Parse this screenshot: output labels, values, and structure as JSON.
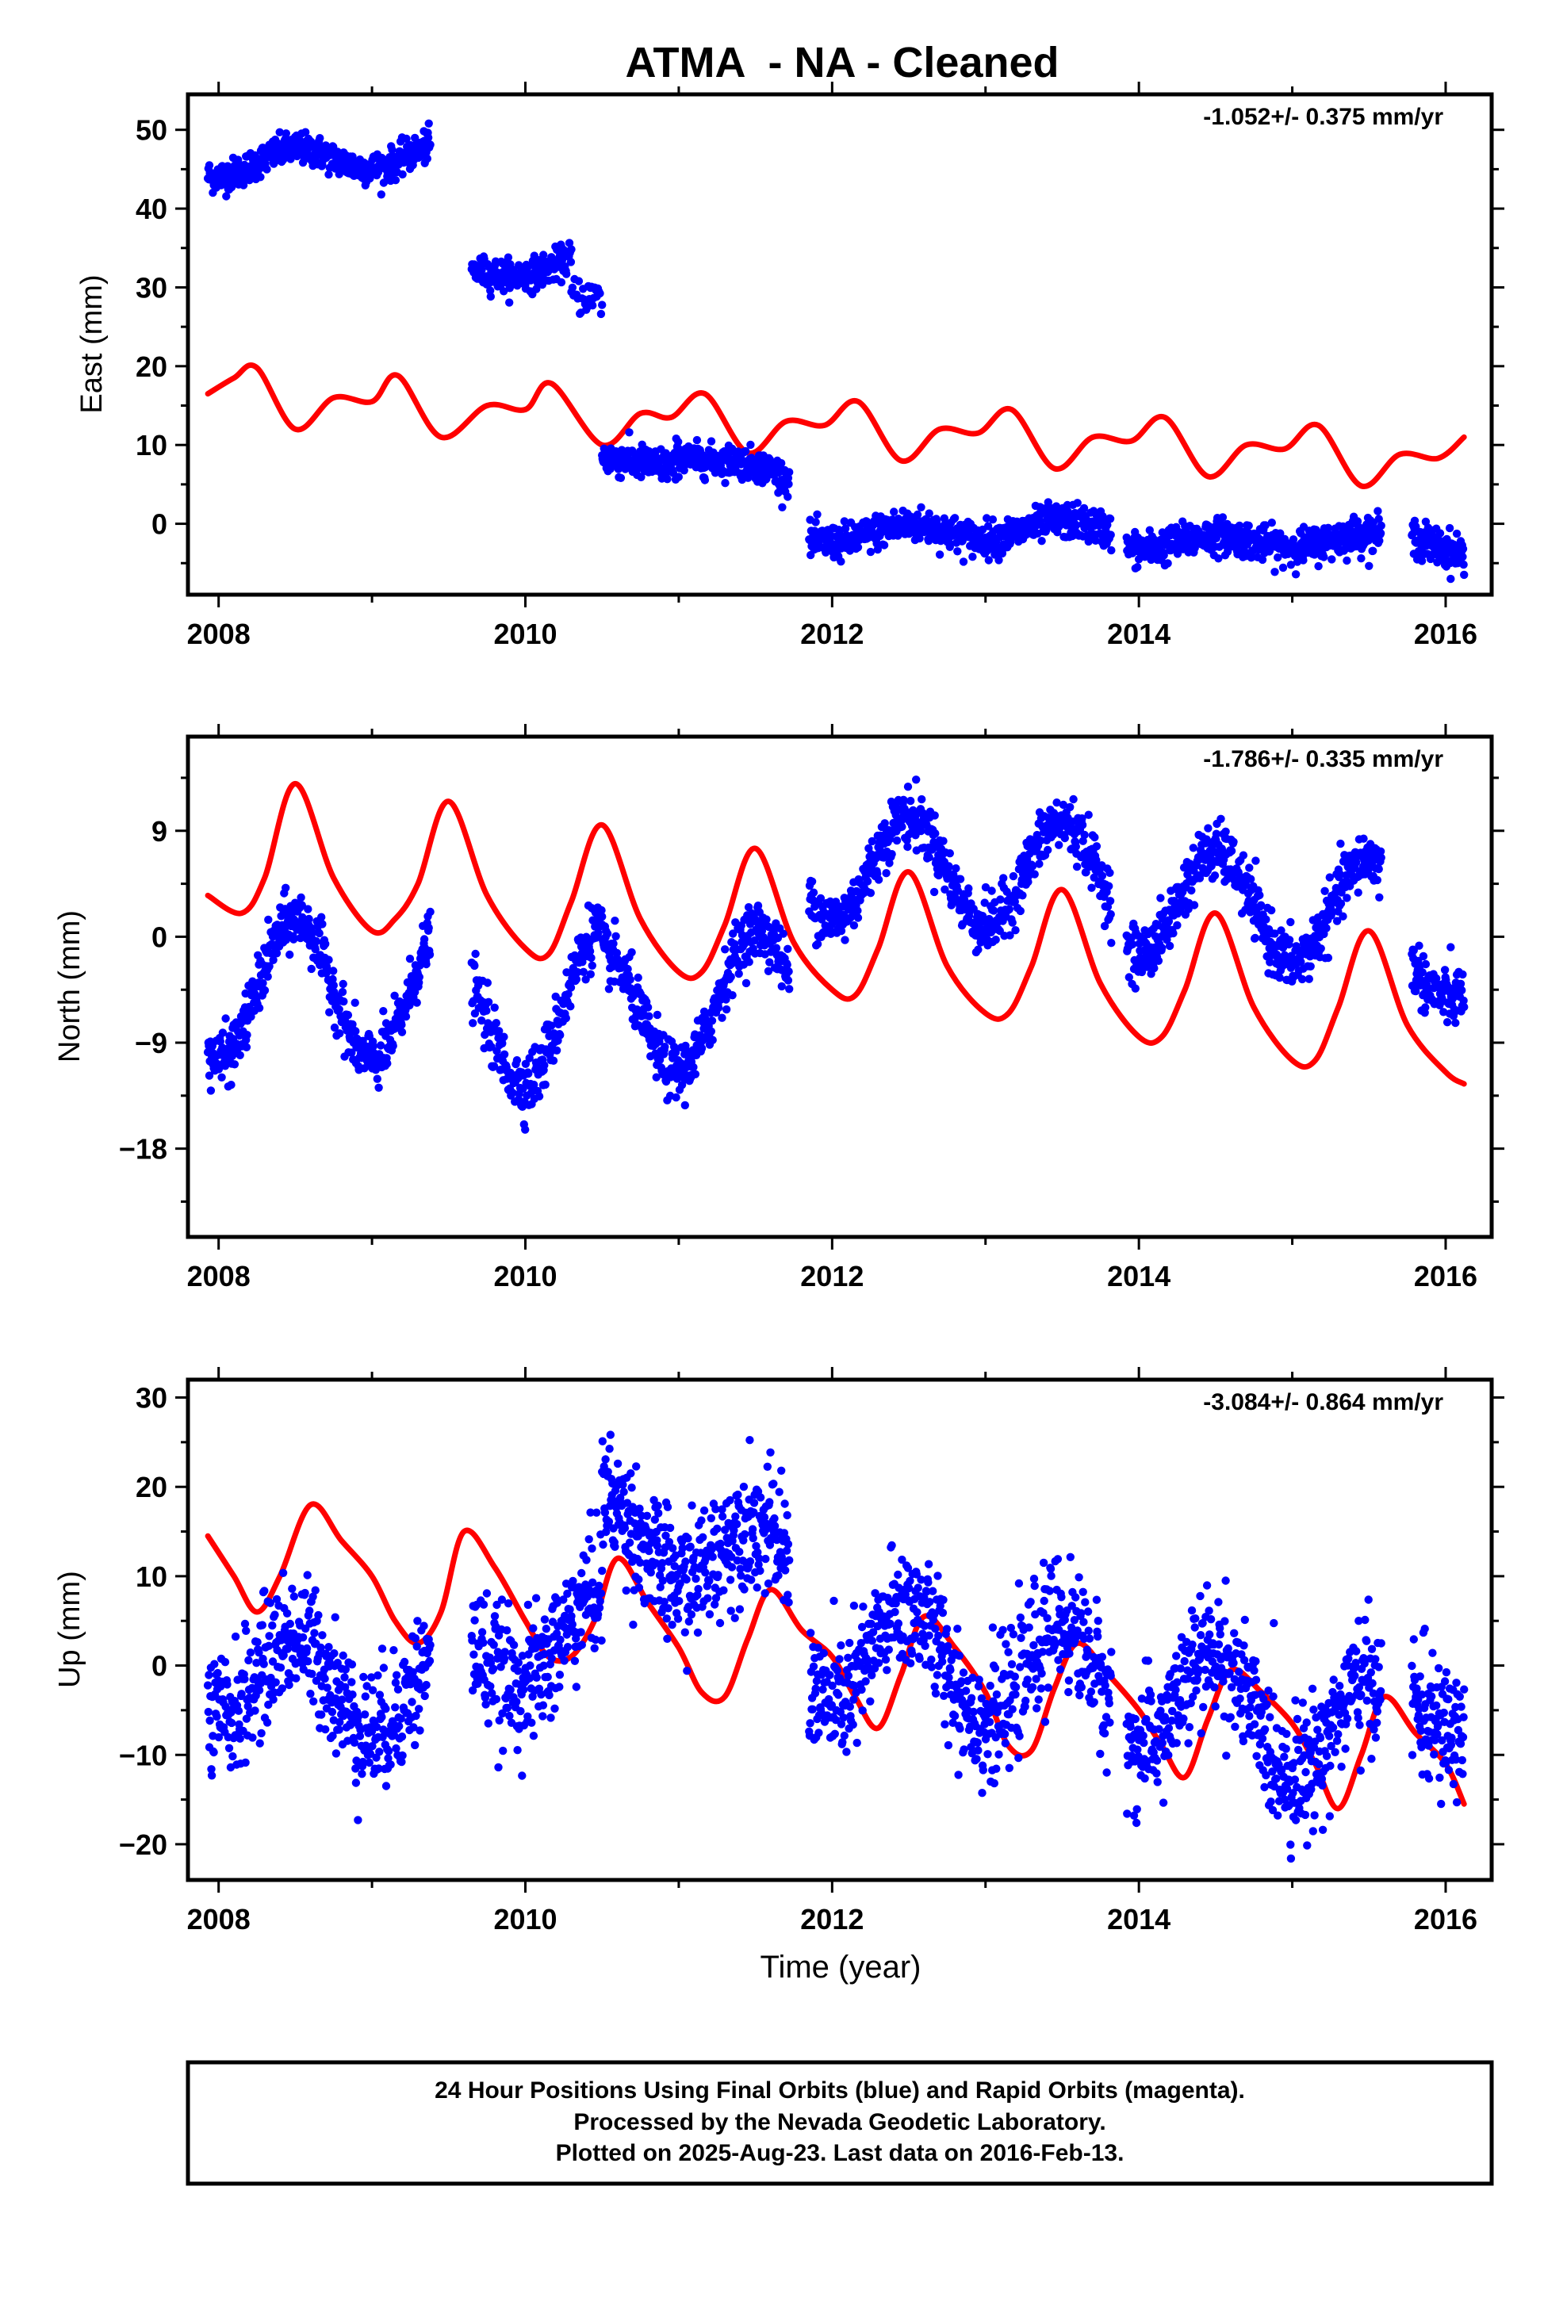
{
  "title": "ATMA  - NA - Cleaned",
  "footer": {
    "line1": "24 Hour Positions Using Final Orbits (blue) and Rapid Orbits (magenta).",
    "line2": "Processed by the Nevada Geodetic Laboratory.",
    "line3": "Plotted on 2025-Aug-23. Last data on 2016-Feb-13."
  },
  "colors": {
    "observed": "#0000ff",
    "model": "#ff0000"
  },
  "chart_data": [
    {
      "type": "scatter",
      "ylabel": "East (mm)",
      "xlabel": "",
      "xlim": [
        2007.8,
        2016.3
      ],
      "ylim": [
        -9,
        54.5
      ],
      "xticks": [
        2008,
        2010,
        2012,
        2014,
        2016
      ],
      "yticks": [
        0,
        10,
        20,
        30,
        40,
        50
      ],
      "rate": "-1.052+/- 0.375 mm/yr",
      "series": [
        {
          "kind": "observed",
          "style": "points",
          "segments": [
            {
              "x0": 2007.93,
              "x1": 2009.38,
              "trend0": 45.5,
              "trend1": 47.0,
              "ann_amp": 1.5,
              "noise": 1.0,
              "n": 450
            },
            {
              "x0": 2009.65,
              "x1": 2010.3,
              "trend0": 31.5,
              "trend1": 33.5,
              "ann_amp": 1.0,
              "noise": 1.0,
              "n": 200
            },
            {
              "x0": 2010.3,
              "x1": 2010.5,
              "trend0": 29.0,
              "trend1": 28.0,
              "ann_amp": 0.5,
              "noise": 1.2,
              "n": 30
            },
            {
              "x0": 2010.5,
              "x1": 2010.98,
              "trend0": 7.5,
              "trend1": 8.0,
              "ann_amp": 0.7,
              "noise": 1.1,
              "n": 150
            },
            {
              "x0": 2010.98,
              "x1": 2011.72,
              "trend0": 9.5,
              "trend1": 5.5,
              "ann_amp": 0.8,
              "noise": 1.0,
              "n": 230
            },
            {
              "x0": 2011.85,
              "x1": 2013.82,
              "trend0": -1.5,
              "trend1": -0.5,
              "ann_amp": 1.0,
              "noise": 1.1,
              "n": 600
            },
            {
              "x0": 2013.92,
              "x1": 2015.58,
              "trend0": -2.5,
              "trend1": -2.0,
              "ann_amp": 0.8,
              "noise": 1.1,
              "n": 520
            },
            {
              "x0": 2015.78,
              "x1": 2016.12,
              "trend0": -1.5,
              "trend1": -3.5,
              "ann_amp": 0.5,
              "noise": 1.2,
              "n": 110
            }
          ]
        },
        {
          "kind": "model",
          "style": "line",
          "x": [
            2007.93,
            2008.1,
            2008.25,
            2008.5,
            2008.75,
            2009.0,
            2009.17,
            2009.45,
            2009.75,
            2010.0,
            2010.17,
            2010.5,
            2010.75,
            2010.95,
            2011.17,
            2011.45,
            2011.7,
            2011.95,
            2012.17,
            2012.45,
            2012.7,
            2012.95,
            2013.17,
            2013.45,
            2013.7,
            2013.95,
            2014.17,
            2014.45,
            2014.7,
            2014.95,
            2015.17,
            2015.45,
            2015.7,
            2015.95,
            2016.12
          ],
          "y": [
            16.5,
            18.5,
            19.8,
            12.0,
            16.0,
            15.5,
            18.8,
            11.0,
            15.0,
            14.5,
            17.8,
            10.0,
            14.0,
            13.5,
            16.5,
            9.0,
            13.0,
            12.5,
            15.5,
            8.0,
            12.0,
            11.5,
            14.5,
            7.0,
            11.0,
            10.5,
            13.5,
            6.0,
            10.0,
            9.5,
            12.5,
            4.8,
            8.8,
            8.3,
            11.0
          ]
        }
      ]
    },
    {
      "type": "scatter",
      "ylabel": "North (mm)",
      "xlabel": "",
      "xlim": [
        2007.8,
        2016.3
      ],
      "ylim": [
        -25.5,
        17
      ],
      "xticks": [
        2008,
        2010,
        2012,
        2014,
        2016
      ],
      "yticks": [
        -18,
        -9,
        0,
        9
      ],
      "rate": "-1.786+/- 0.335 mm/yr",
      "series": [
        {
          "kind": "observed",
          "style": "points",
          "segments": [
            {
              "x0": 2007.93,
              "x1": 2009.38,
              "trend0": -4.5,
              "trend1": -4.5,
              "ann_amp": 6.0,
              "noise": 1.2,
              "n": 450
            },
            {
              "x0": 2009.65,
              "x1": 2010.5,
              "trend0": -7.5,
              "trend1": -5.0,
              "ann_amp": 6.0,
              "noise": 1.3,
              "n": 240
            },
            {
              "x0": 2010.5,
              "x1": 2011.72,
              "trend0": -7.0,
              "trend1": -4.5,
              "ann_amp": 5.5,
              "noise": 1.2,
              "n": 380
            },
            {
              "x0": 2011.85,
              "x1": 2013.82,
              "trend0": 6.0,
              "trend1": 5.0,
              "ann_amp": 4.5,
              "noise": 1.2,
              "n": 600
            },
            {
              "x0": 2013.92,
              "x1": 2015.58,
              "trend0": 3.0,
              "trend1": 2.0,
              "ann_amp": 4.5,
              "noise": 1.2,
              "n": 520
            },
            {
              "x0": 2015.78,
              "x1": 2016.12,
              "trend0": -2.0,
              "trend1": -3.0,
              "ann_amp": 2.5,
              "noise": 1.2,
              "n": 110
            }
          ]
        },
        {
          "kind": "model",
          "style": "line",
          "x": [
            2007.93,
            2008.15,
            2008.3,
            2008.5,
            2008.75,
            2009.0,
            2009.15,
            2009.3,
            2009.5,
            2009.75,
            2010.0,
            2010.15,
            2010.3,
            2010.5,
            2010.75,
            2011.0,
            2011.15,
            2011.3,
            2011.5,
            2011.75,
            2012.0,
            2012.15,
            2012.3,
            2012.5,
            2012.75,
            2013.0,
            2013.15,
            2013.3,
            2013.5,
            2013.75,
            2014.0,
            2014.15,
            2014.3,
            2014.5,
            2014.75,
            2015.0,
            2015.15,
            2015.3,
            2015.5,
            2015.75,
            2016.0,
            2016.12
          ],
          "y": [
            3.5,
            2.0,
            5.0,
            13.0,
            5.0,
            0.5,
            1.5,
            4.5,
            11.5,
            3.5,
            -1.0,
            -1.5,
            3.0,
            9.5,
            1.5,
            -3.0,
            -3.0,
            1.0,
            7.5,
            -0.5,
            -4.5,
            -5.0,
            -1.0,
            5.5,
            -2.5,
            -6.5,
            -6.5,
            -2.5,
            4.0,
            -4.0,
            -8.5,
            -8.5,
            -4.5,
            2.0,
            -6.0,
            -10.5,
            -10.5,
            -6.0,
            0.5,
            -7.5,
            -11.5,
            -12.5
          ]
        }
      ]
    },
    {
      "type": "scatter",
      "ylabel": "Up (mm)",
      "xlabel": "Time (year)",
      "xlim": [
        2007.8,
        2016.3
      ],
      "ylim": [
        -24,
        32
      ],
      "xticks": [
        2008,
        2010,
        2012,
        2014,
        2016
      ],
      "yticks": [
        -20,
        -10,
        0,
        10,
        20,
        30
      ],
      "rate": "-3.084+/- 0.864 mm/yr",
      "series": [
        {
          "kind": "observed",
          "style": "points",
          "segments": [
            {
              "x0": 2007.93,
              "x1": 2009.38,
              "trend0": -1.0,
              "trend1": -3.0,
              "ann_amp": 5.0,
              "noise": 3.5,
              "n": 450
            },
            {
              "x0": 2009.65,
              "x1": 2010.5,
              "trend0": 0.0,
              "trend1": 5.0,
              "ann_amp": 4.0,
              "noise": 3.5,
              "n": 260
            },
            {
              "x0": 2010.5,
              "x1": 2011.72,
              "trend0": 15.0,
              "trend1": 11.0,
              "ann_amp": 4.0,
              "noise": 3.5,
              "n": 380
            },
            {
              "x0": 2011.85,
              "x1": 2013.82,
              "trend0": 2.0,
              "trend1": -2.0,
              "ann_amp": 6.0,
              "noise": 3.5,
              "n": 600
            },
            {
              "x0": 2013.92,
              "x1": 2015.58,
              "trend0": -3.0,
              "trend1": -8.0,
              "ann_amp": 6.0,
              "noise": 3.5,
              "n": 520
            },
            {
              "x0": 2015.78,
              "x1": 2016.12,
              "trend0": -3.0,
              "trend1": -5.0,
              "ann_amp": 3.0,
              "noise": 3.5,
              "n": 110
            }
          ]
        },
        {
          "kind": "model",
          "style": "line",
          "x": [
            2007.93,
            2008.1,
            2008.25,
            2008.4,
            2008.6,
            2008.8,
            2009.0,
            2009.15,
            2009.3,
            2009.45,
            2009.6,
            2009.8,
            2010.0,
            2010.15,
            2010.3,
            2010.45,
            2010.6,
            2010.8,
            2011.0,
            2011.15,
            2011.3,
            2011.45,
            2011.6,
            2011.8,
            2012.0,
            2012.15,
            2012.3,
            2012.45,
            2012.6,
            2012.8,
            2013.0,
            2013.15,
            2013.3,
            2013.45,
            2013.6,
            2013.8,
            2014.0,
            2014.15,
            2014.3,
            2014.45,
            2014.6,
            2014.8,
            2015.0,
            2015.15,
            2015.3,
            2015.45,
            2015.6,
            2015.8,
            2016.0,
            2016.12
          ],
          "y": [
            14.5,
            10.0,
            6.0,
            10.0,
            18.0,
            14.0,
            10.0,
            5.0,
            2.5,
            6.0,
            15.0,
            11.0,
            5.0,
            1.0,
            1.0,
            5.0,
            12.0,
            7.0,
            2.0,
            -3.0,
            -3.5,
            3.0,
            8.5,
            4.0,
            1.0,
            -3.5,
            -7.0,
            -1.0,
            5.5,
            2.0,
            -3.0,
            -9.0,
            -9.5,
            -2.5,
            2.5,
            -1.0,
            -5.0,
            -9.0,
            -12.5,
            -6.0,
            -0.5,
            -3.0,
            -6.5,
            -11.0,
            -16.0,
            -10.0,
            -3.5,
            -7.5,
            -11.0,
            -15.5
          ]
        }
      ]
    }
  ]
}
